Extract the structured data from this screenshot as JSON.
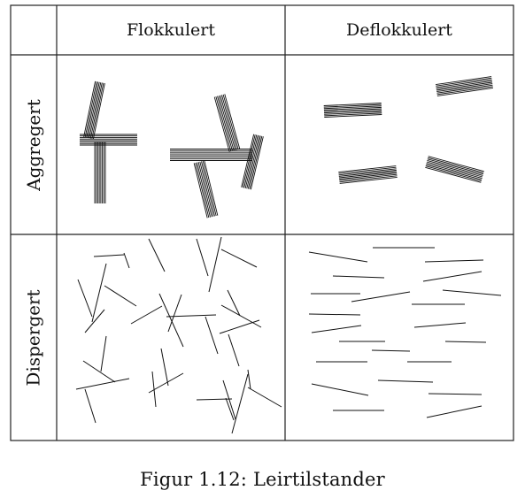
{
  "table": {
    "col_headers": [
      "Flokkulert",
      "Deflokkulert"
    ],
    "row_headers": [
      "Aggregert",
      "Dispergert"
    ]
  },
  "caption": "Figur 1.12: Leirtilstander",
  "colors": {
    "line": "#111111",
    "background": "#ffffff"
  }
}
